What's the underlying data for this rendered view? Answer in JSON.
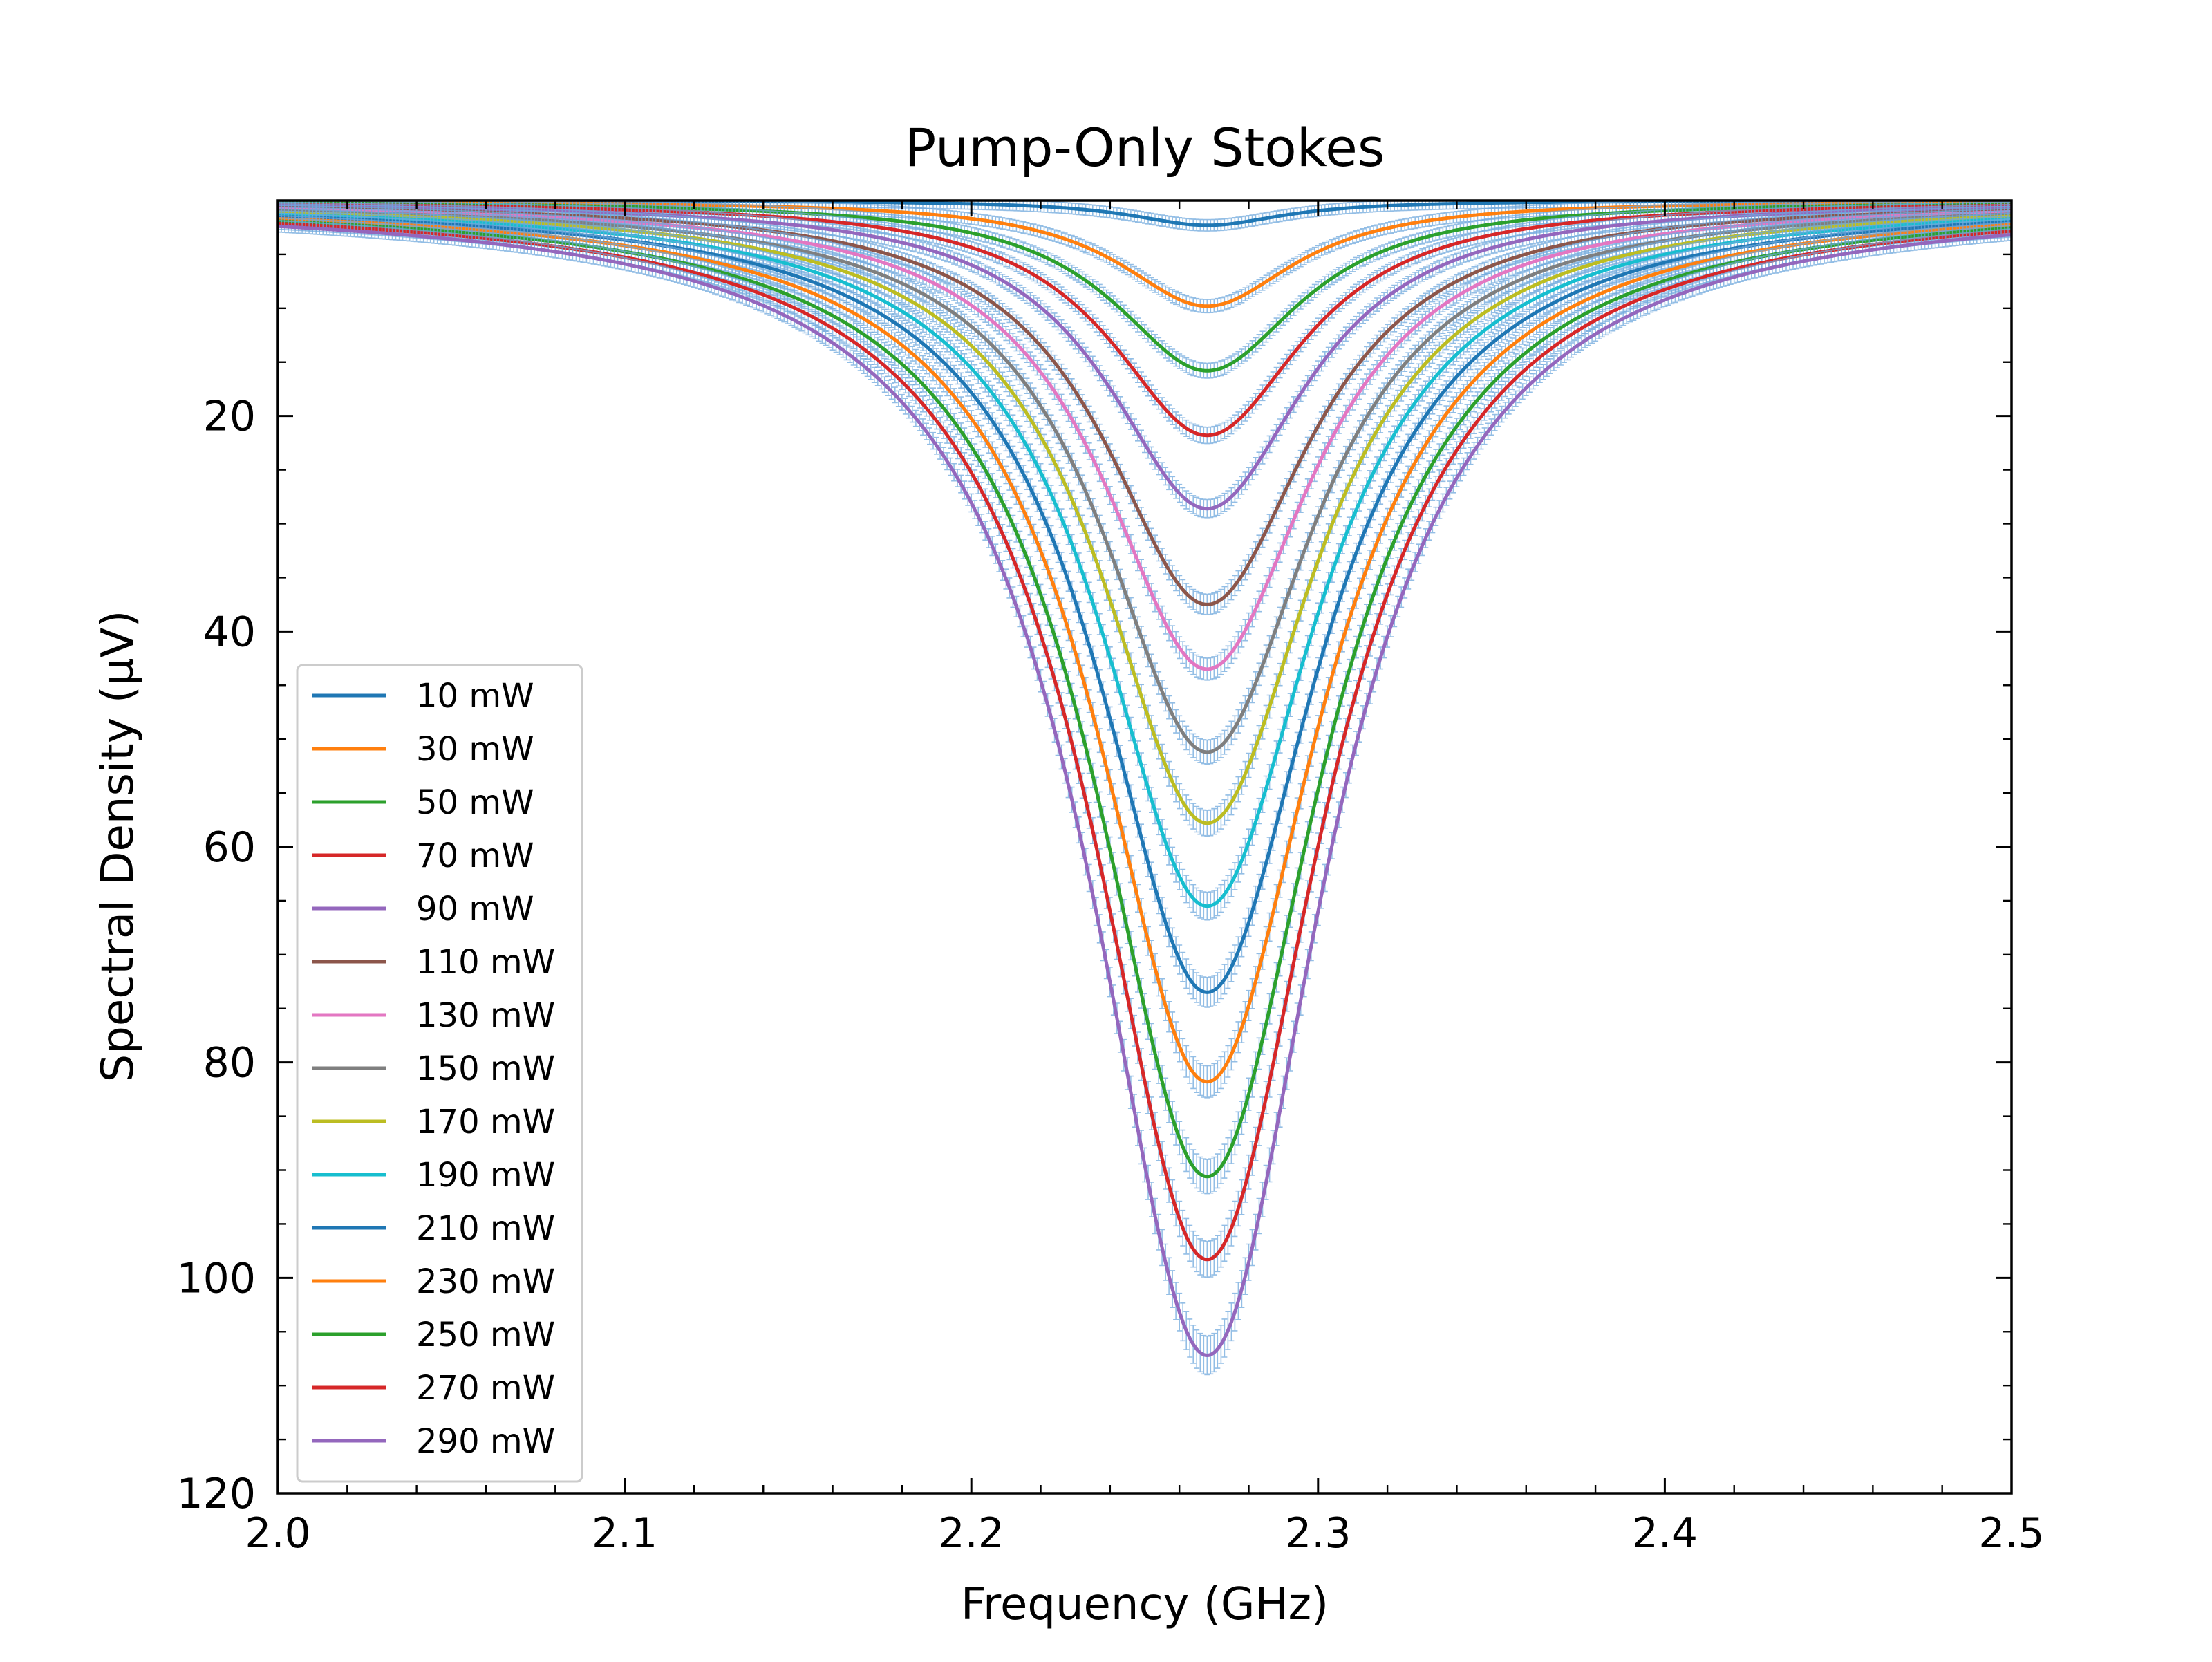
{
  "chart_data": {
    "type": "line",
    "title": "Pump-Only Stokes",
    "xlabel": "Frequency (GHz)",
    "ylabel": "Spectral Density (μV)",
    "xlim": [
      2.0,
      2.5
    ],
    "ylim": [
      120,
      0
    ],
    "y_inverted": true,
    "x_ticks": [
      "2.0",
      "2.1",
      "2.2",
      "2.3",
      "2.4",
      "2.5"
    ],
    "y_ticks": [
      "20",
      "40",
      "60",
      "80",
      "100",
      "120"
    ],
    "grid": false,
    "legend_position": "lower-left",
    "peak_frequency_ghz": 2.268,
    "has_error_bars": true,
    "series": [
      {
        "name": "10 mW",
        "color": "#1f77b4",
        "peak": 2.3,
        "fwhm_ghz": 0.054
      },
      {
        "name": "30 mW",
        "color": "#ff7f0e",
        "peak": 9.8,
        "fwhm_ghz": 0.062
      },
      {
        "name": "50 mW",
        "color": "#2ca02c",
        "peak": 15.8,
        "fwhm_ghz": 0.066
      },
      {
        "name": "70 mW",
        "color": "#d62728",
        "peak": 21.8,
        "fwhm_ghz": 0.068
      },
      {
        "name": "90 mW",
        "color": "#9467bd",
        "peak": 28.6,
        "fwhm_ghz": 0.07
      },
      {
        "name": "110 mW",
        "color": "#8c564b",
        "peak": 37.5,
        "fwhm_ghz": 0.072
      },
      {
        "name": "130 mW",
        "color": "#e377c2",
        "peak": 43.5,
        "fwhm_ghz": 0.073
      },
      {
        "name": "150 mW",
        "color": "#7f7f7f",
        "peak": 51.2,
        "fwhm_ghz": 0.074
      },
      {
        "name": "170 mW",
        "color": "#bcbd22",
        "peak": 57.8,
        "fwhm_ghz": 0.075
      },
      {
        "name": "190 mW",
        "color": "#17becf",
        "peak": 65.5,
        "fwhm_ghz": 0.076
      },
      {
        "name": "210 mW",
        "color": "#1f77b4",
        "peak": 73.5,
        "fwhm_ghz": 0.077
      },
      {
        "name": "230 mW",
        "color": "#ff7f0e",
        "peak": 81.8,
        "fwhm_ghz": 0.078
      },
      {
        "name": "250 mW",
        "color": "#2ca02c",
        "peak": 90.6,
        "fwhm_ghz": 0.079
      },
      {
        "name": "270 mW",
        "color": "#d62728",
        "peak": 98.3,
        "fwhm_ghz": 0.08
      },
      {
        "name": "290 mW",
        "color": "#9467bd",
        "peak": 107.2,
        "fwhm_ghz": 0.081
      }
    ]
  }
}
